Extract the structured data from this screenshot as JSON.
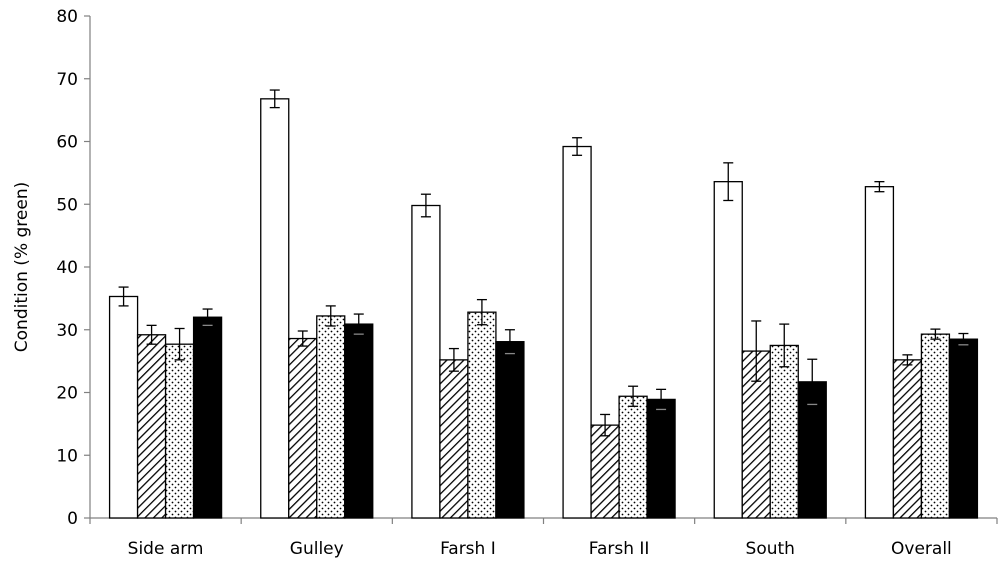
{
  "chart_data": {
    "type": "bar",
    "title": "",
    "xlabel": "",
    "ylabel": "Condition (% green)",
    "ylim": [
      0,
      80
    ],
    "yticks": [
      0,
      10,
      20,
      30,
      40,
      50,
      60,
      70,
      80
    ],
    "grid": false,
    "legend": "none",
    "categories": [
      "Side arm",
      "Gulley",
      "Farsh I",
      "Farsh II",
      "South",
      "Overall"
    ],
    "series": [
      {
        "fill": "white",
        "color": "#ffffff",
        "values": [
          35.3,
          66.8,
          49.8,
          59.2,
          53.6,
          52.8
        ],
        "errors": [
          1.5,
          1.4,
          1.8,
          1.4,
          3.0,
          0.8
        ]
      },
      {
        "fill": "diagonal-hatch",
        "color": "#000000",
        "values": [
          29.2,
          28.6,
          25.2,
          14.8,
          26.6,
          25.2
        ],
        "errors": [
          1.5,
          1.2,
          1.8,
          1.7,
          4.8,
          0.8
        ]
      },
      {
        "fill": "dotted",
        "color": "#000000",
        "values": [
          27.7,
          32.2,
          32.8,
          19.4,
          27.5,
          29.3
        ],
        "errors": [
          2.5,
          1.6,
          2.0,
          1.6,
          3.4,
          0.8
        ]
      },
      {
        "fill": "solid-black",
        "color": "#000000",
        "values": [
          32.0,
          30.9,
          28.1,
          18.9,
          21.7,
          28.5
        ],
        "errors": [
          1.3,
          1.6,
          1.9,
          1.6,
          3.6,
          0.9
        ]
      }
    ]
  }
}
